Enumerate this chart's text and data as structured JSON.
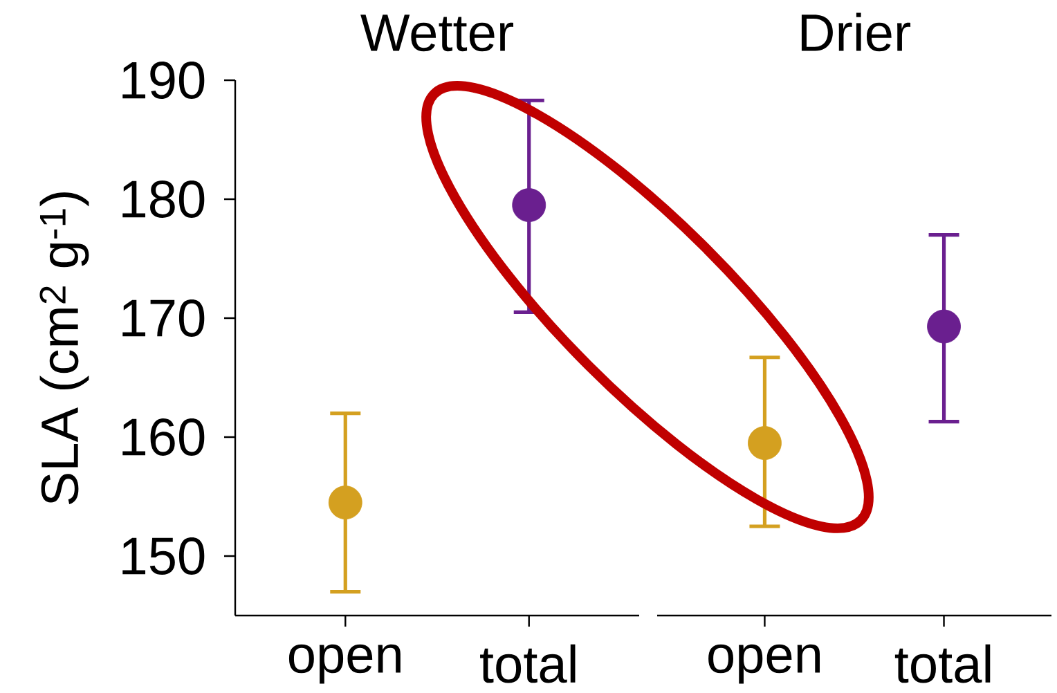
{
  "chart_data": [
    {
      "type": "scatter",
      "title": "Wetter",
      "ylabel": "SLA  (cm$^{2}$ g$^{-1}$)",
      "categories": [
        "open",
        "total"
      ],
      "values": [
        154.5,
        179.5
      ],
      "colors": [
        "#d4a020",
        "#6a1f8f"
      ],
      "errors": [
        [
          147,
          162
        ],
        [
          170.5,
          188.3
        ]
      ],
      "ylim": [
        145,
        190
      ],
      "yticks": [
        150,
        160,
        170,
        180,
        190
      ],
      "marker": "circle",
      "grid": false,
      "legend": false
    },
    {
      "type": "scatter",
      "title": "Drier",
      "categories": [
        "open",
        "total"
      ],
      "values": [
        159.5,
        169.3
      ],
      "colors": [
        "#d4a020",
        "#6a1f8f"
      ],
      "errors": [
        [
          152.5,
          166.7
        ],
        [
          161.3,
          177
        ]
      ],
      "ylim": [
        145,
        190
      ],
      "tick_labels": "x",
      "marker": "circle",
      "grid": false,
      "legend": false
    }
  ]
}
